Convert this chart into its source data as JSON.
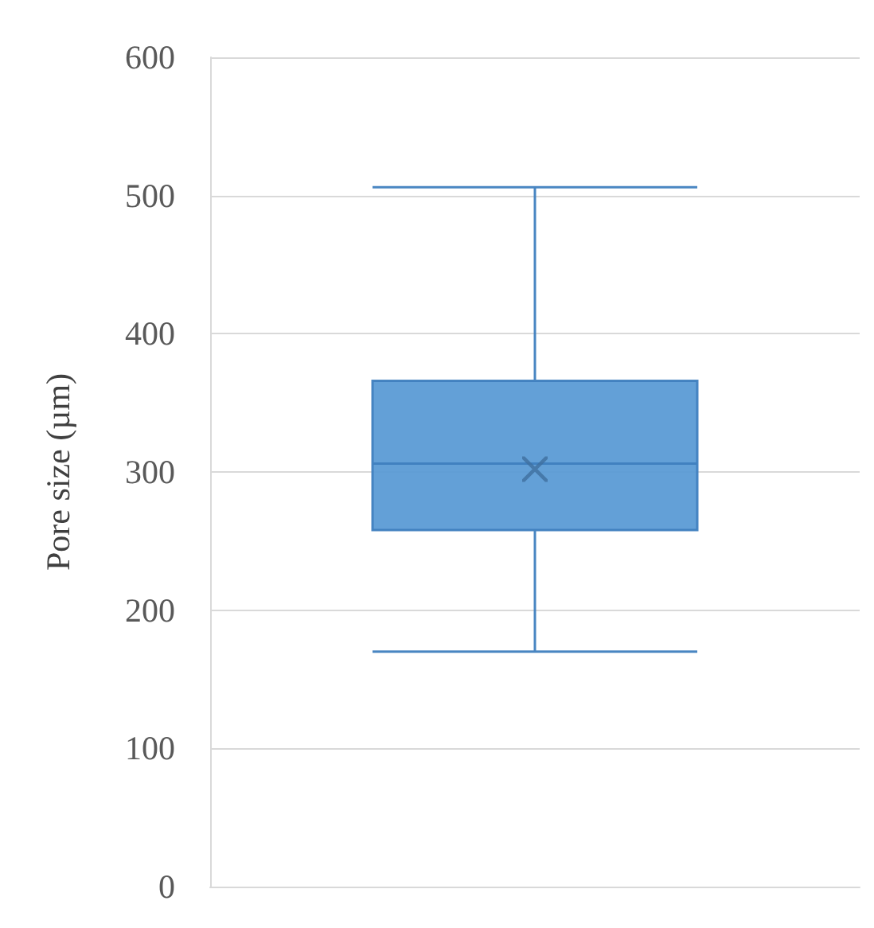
{
  "chart_data": {
    "type": "box",
    "ylabel": "Pore size (µm)",
    "categories": [
      null
    ],
    "boxes": [
      {
        "low": 170,
        "q1": 258,
        "median": 306,
        "q3": 366,
        "high": 506,
        "mean": 302
      }
    ],
    "color": "#5b9bd5",
    "ylim": [
      0,
      600
    ],
    "yticks": [
      0,
      100,
      200,
      300,
      400,
      500,
      600
    ],
    "grid": "y"
  }
}
